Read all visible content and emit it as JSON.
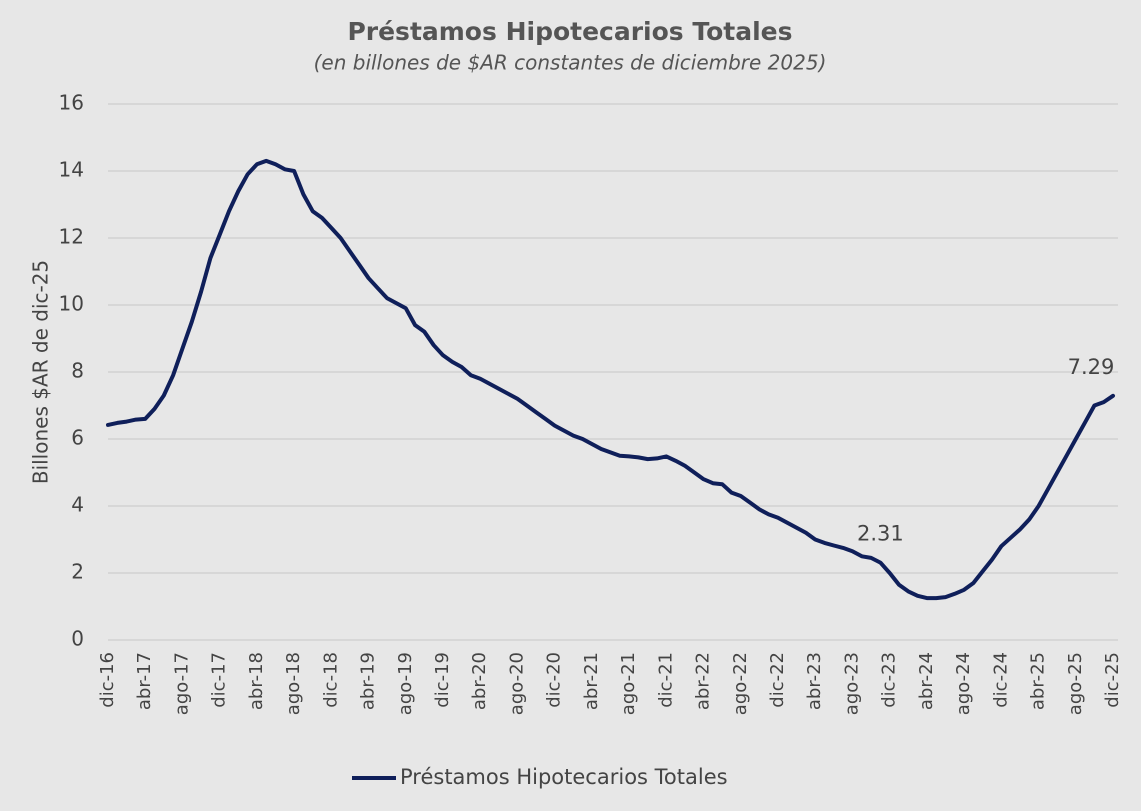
{
  "chart_data": {
    "type": "line",
    "title": "Préstamos Hipotecarios Totales",
    "subtitle": "(en billones de $AR constantes de diciembre 2025)",
    "y_label": "Billones $AR de dic-25",
    "categories": [
      "dic-16",
      null,
      null,
      null,
      "abr-17",
      null,
      null,
      null,
      "ago-17",
      null,
      null,
      null,
      "dic-17",
      null,
      null,
      null,
      "abr-18",
      null,
      null,
      null,
      "ago-18",
      null,
      null,
      null,
      "dic-18",
      null,
      null,
      null,
      "abr-19",
      null,
      null,
      null,
      "ago-19",
      null,
      null,
      null,
      "dic-19",
      null,
      null,
      null,
      "abr-20",
      null,
      null,
      null,
      "ago-20",
      null,
      null,
      null,
      "dic-20",
      null,
      null,
      null,
      "abr-21",
      null,
      null,
      null,
      "ago-21",
      null,
      null,
      null,
      "dic-21",
      null,
      null,
      null,
      "abr-22",
      null,
      null,
      null,
      "ago-22",
      null,
      null,
      null,
      "dic-22",
      null,
      null,
      null,
      "abr-23",
      null,
      null,
      null,
      "ago-23",
      null,
      null,
      null,
      "dic-23",
      null,
      null,
      null,
      "abr-24",
      null,
      null,
      null,
      "ago-24",
      null,
      null,
      null,
      "dic-24",
      null,
      null,
      null,
      "abr-25",
      null,
      null,
      null,
      "ago-25",
      null,
      null,
      null,
      "dic-25"
    ],
    "series": [
      {
        "name": "Préstamos Hipotecarios Totales",
        "color": "#0f1f5a",
        "values": [
          6.42,
          6.48,
          6.52,
          6.58,
          6.6,
          6.9,
          7.3,
          7.9,
          8.7,
          9.5,
          10.4,
          11.4,
          12.1,
          12.8,
          13.4,
          13.9,
          14.2,
          14.3,
          14.2,
          14.05,
          14.0,
          13.3,
          12.8,
          12.6,
          12.3,
          12.0,
          11.6,
          11.2,
          10.8,
          10.5,
          10.2,
          10.05,
          9.9,
          9.4,
          9.2,
          8.8,
          8.5,
          8.3,
          8.15,
          7.9,
          7.8,
          7.65,
          7.5,
          7.35,
          7.2,
          7.0,
          6.8,
          6.6,
          6.4,
          6.25,
          6.1,
          6.0,
          5.85,
          5.7,
          5.6,
          5.5,
          5.48,
          5.45,
          5.4,
          5.42,
          5.48,
          5.35,
          5.2,
          5.0,
          4.8,
          4.68,
          4.65,
          4.4,
          4.3,
          4.1,
          3.9,
          3.75,
          3.65,
          3.5,
          3.35,
          3.2,
          3.0,
          2.9,
          2.82,
          2.75,
          2.65,
          2.5,
          2.45,
          2.31,
          2.0,
          1.65,
          1.45,
          1.32,
          1.25,
          1.25,
          1.28,
          1.38,
          1.5,
          1.7,
          2.05,
          2.4,
          2.8,
          3.05,
          3.3,
          3.6,
          4.0,
          4.5,
          5.0,
          5.5,
          6.0,
          6.5,
          7.0,
          7.1,
          7.29
        ],
        "value_labels": [
          null,
          null,
          null,
          null,
          null,
          null,
          null,
          null,
          null,
          null,
          null,
          null,
          null,
          null,
          null,
          null,
          null,
          null,
          null,
          null,
          null,
          null,
          null,
          null,
          null,
          null,
          null,
          null,
          null,
          null,
          null,
          null,
          null,
          null,
          null,
          null,
          null,
          null,
          null,
          null,
          null,
          null,
          null,
          null,
          null,
          null,
          null,
          null,
          null,
          null,
          null,
          null,
          null,
          null,
          null,
          null,
          null,
          null,
          null,
          null,
          null,
          null,
          null,
          null,
          null,
          null,
          null,
          null,
          null,
          null,
          null,
          null,
          null,
          null,
          null,
          null,
          null,
          null,
          null,
          null,
          null,
          null,
          null,
          "2.31",
          null,
          null,
          null,
          null,
          null,
          null,
          null,
          null,
          null,
          null,
          null,
          null,
          null,
          null,
          null,
          null,
          null,
          null,
          null,
          null,
          null,
          null,
          null,
          null,
          "7.29"
        ]
      }
    ],
    "ylim": [
      0,
      16
    ],
    "yticks": [
      0,
      2,
      4,
      6,
      8,
      10,
      12,
      14,
      16
    ],
    "grid": true,
    "legend": "bottom"
  }
}
